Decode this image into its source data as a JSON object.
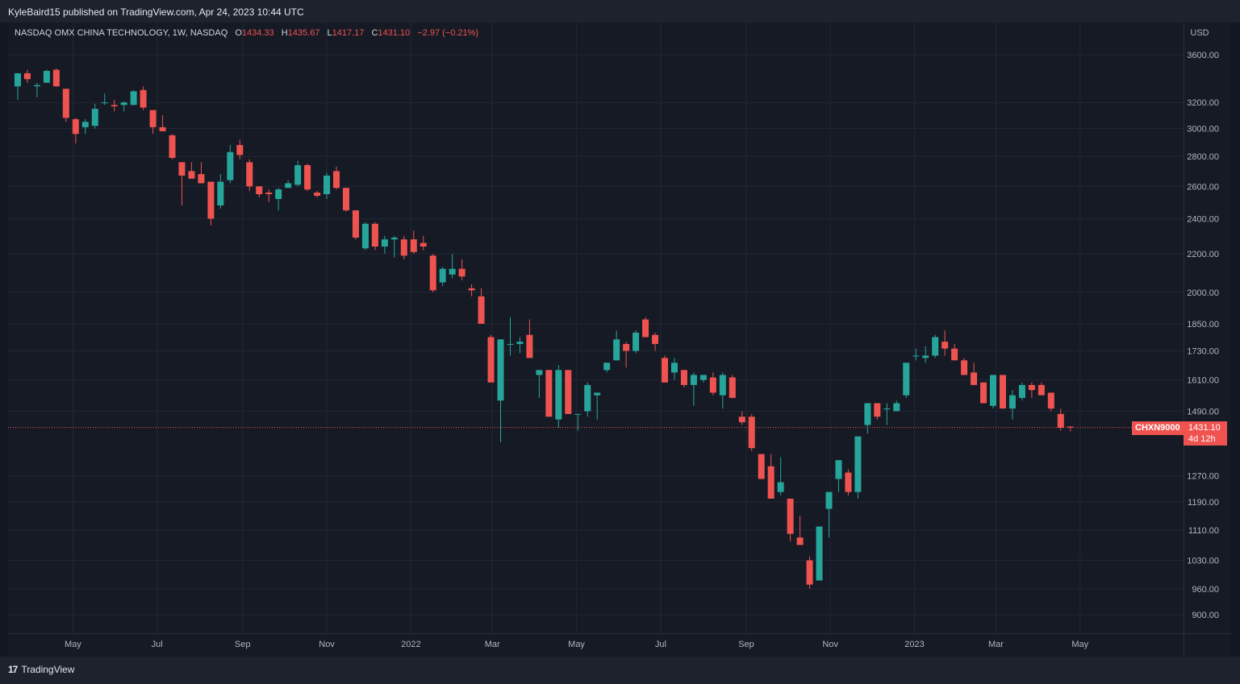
{
  "publisher_line": "KyleBaird15 published on TradingView.com, Apr 24, 2023 10:44 UTC",
  "branding": {
    "logo_glyph": "17",
    "name": "TradingView"
  },
  "legend": {
    "symbol_title": "NASDAQ OMX CHINA TECHNOLOGY, 1W, NASDAQ",
    "o_label": "O",
    "o_value": "1434.33",
    "h_label": "H",
    "h_value": "1435.67",
    "l_label": "L",
    "l_value": "1417.17",
    "c_label": "C",
    "c_value": "1431.10",
    "change": "−2.97 (−0.21%)"
  },
  "price_axis": {
    "currency": "USD",
    "current_symbol": "CHXN9000",
    "current_price": "1431.10",
    "countdown": "4d 12h"
  },
  "colors": {
    "up": "#26a69a",
    "down": "#ef5350",
    "background": "#161a25",
    "grid": "#232734",
    "text": "#b2b5be"
  },
  "chart_data": {
    "type": "candlestick",
    "title": "NASDAQ OMX CHINA TECHNOLOGY, 1W, NASDAQ",
    "y_scale": "log",
    "ylim": [
      860,
      3900
    ],
    "y_ticks": [
      900,
      960,
      1030,
      1110,
      1190,
      1270,
      1490,
      1610,
      1730,
      1850,
      2000,
      2200,
      2400,
      2600,
      2800,
      3000,
      3200,
      3600
    ],
    "x_ticks": [
      {
        "label": "May",
        "date": "2021-05-01"
      },
      {
        "label": "Jul",
        "date": "2021-07-01"
      },
      {
        "label": "Sep",
        "date": "2021-09-01"
      },
      {
        "label": "Nov",
        "date": "2021-11-01"
      },
      {
        "label": "2022",
        "date": "2022-01-01"
      },
      {
        "label": "Mar",
        "date": "2022-03-01"
      },
      {
        "label": "May",
        "date": "2022-05-01"
      },
      {
        "label": "Jul",
        "date": "2022-07-01"
      },
      {
        "label": "Sep",
        "date": "2022-09-01"
      },
      {
        "label": "Nov",
        "date": "2022-11-01"
      },
      {
        "label": "2023",
        "date": "2023-01-01"
      },
      {
        "label": "Mar",
        "date": "2023-03-01"
      },
      {
        "label": "May",
        "date": "2023-05-01"
      }
    ],
    "x_range": [
      "2021-03-15",
      "2023-07-15"
    ],
    "candles": [
      {
        "date": "2021-03-22",
        "o": 3330,
        "h": 3440,
        "l": 3220,
        "c": 3440
      },
      {
        "date": "2021-03-29",
        "o": 3440,
        "h": 3470,
        "l": 3360,
        "c": 3390
      },
      {
        "date": "2021-04-05",
        "o": 3330,
        "h": 3360,
        "l": 3240,
        "c": 3340
      },
      {
        "date": "2021-04-12",
        "o": 3360,
        "h": 3470,
        "l": 3360,
        "c": 3460
      },
      {
        "date": "2021-04-19",
        "o": 3470,
        "h": 3480,
        "l": 3330,
        "c": 3330
      },
      {
        "date": "2021-04-26",
        "o": 3310,
        "h": 3310,
        "l": 3050,
        "c": 3080
      },
      {
        "date": "2021-05-03",
        "o": 3070,
        "h": 3080,
        "l": 2890,
        "c": 2960
      },
      {
        "date": "2021-05-10",
        "o": 3010,
        "h": 3070,
        "l": 2960,
        "c": 3050
      },
      {
        "date": "2021-05-17",
        "o": 3020,
        "h": 3190,
        "l": 3000,
        "c": 3150
      },
      {
        "date": "2021-05-24",
        "o": 3200,
        "h": 3270,
        "l": 3180,
        "c": 3200
      },
      {
        "date": "2021-05-31",
        "o": 3180,
        "h": 3220,
        "l": 3130,
        "c": 3170
      },
      {
        "date": "2021-06-07",
        "o": 3180,
        "h": 3210,
        "l": 3130,
        "c": 3200
      },
      {
        "date": "2021-06-14",
        "o": 3180,
        "h": 3300,
        "l": 3180,
        "c": 3290
      },
      {
        "date": "2021-06-21",
        "o": 3300,
        "h": 3330,
        "l": 3140,
        "c": 3160
      },
      {
        "date": "2021-06-28",
        "o": 3140,
        "h": 3140,
        "l": 2960,
        "c": 3010
      },
      {
        "date": "2021-07-05",
        "o": 3010,
        "h": 3100,
        "l": 2980,
        "c": 2980
      },
      {
        "date": "2021-07-12",
        "o": 2950,
        "h": 2960,
        "l": 2780,
        "c": 2790
      },
      {
        "date": "2021-07-19",
        "o": 2760,
        "h": 2760,
        "l": 2480,
        "c": 2670
      },
      {
        "date": "2021-07-26",
        "o": 2700,
        "h": 2760,
        "l": 2650,
        "c": 2650
      },
      {
        "date": "2021-08-02",
        "o": 2680,
        "h": 2760,
        "l": 2620,
        "c": 2620
      },
      {
        "date": "2021-08-09",
        "o": 2630,
        "h": 2630,
        "l": 2360,
        "c": 2400
      },
      {
        "date": "2021-08-16",
        "o": 2480,
        "h": 2680,
        "l": 2460,
        "c": 2630
      },
      {
        "date": "2021-08-23",
        "o": 2640,
        "h": 2880,
        "l": 2620,
        "c": 2830
      },
      {
        "date": "2021-08-30",
        "o": 2880,
        "h": 2920,
        "l": 2780,
        "c": 2810
      },
      {
        "date": "2021-09-06",
        "o": 2760,
        "h": 2780,
        "l": 2570,
        "c": 2600
      },
      {
        "date": "2021-09-13",
        "o": 2600,
        "h": 2600,
        "l": 2530,
        "c": 2550
      },
      {
        "date": "2021-09-20",
        "o": 2560,
        "h": 2580,
        "l": 2500,
        "c": 2550
      },
      {
        "date": "2021-09-27",
        "o": 2520,
        "h": 2590,
        "l": 2450,
        "c": 2580
      },
      {
        "date": "2021-10-04",
        "o": 2590,
        "h": 2640,
        "l": 2590,
        "c": 2620
      },
      {
        "date": "2021-10-11",
        "o": 2610,
        "h": 2770,
        "l": 2600,
        "c": 2740
      },
      {
        "date": "2021-10-18",
        "o": 2740,
        "h": 2750,
        "l": 2570,
        "c": 2580
      },
      {
        "date": "2021-10-25",
        "o": 2560,
        "h": 2570,
        "l": 2530,
        "c": 2540
      },
      {
        "date": "2021-11-01",
        "o": 2550,
        "h": 2690,
        "l": 2520,
        "c": 2670
      },
      {
        "date": "2021-11-08",
        "o": 2700,
        "h": 2730,
        "l": 2580,
        "c": 2590
      },
      {
        "date": "2021-11-15",
        "o": 2590,
        "h": 2590,
        "l": 2440,
        "c": 2450
      },
      {
        "date": "2021-11-22",
        "o": 2450,
        "h": 2450,
        "l": 2280,
        "c": 2290
      },
      {
        "date": "2021-11-29",
        "o": 2230,
        "h": 2380,
        "l": 2220,
        "c": 2370
      },
      {
        "date": "2021-12-06",
        "o": 2370,
        "h": 2380,
        "l": 2220,
        "c": 2240
      },
      {
        "date": "2021-12-13",
        "o": 2240,
        "h": 2300,
        "l": 2200,
        "c": 2280
      },
      {
        "date": "2021-12-20",
        "o": 2280,
        "h": 2300,
        "l": 2180,
        "c": 2290
      },
      {
        "date": "2021-12-27",
        "o": 2280,
        "h": 2300,
        "l": 2170,
        "c": 2190
      },
      {
        "date": "2022-01-03",
        "o": 2280,
        "h": 2330,
        "l": 2200,
        "c": 2210
      },
      {
        "date": "2022-01-10",
        "o": 2260,
        "h": 2300,
        "l": 2220,
        "c": 2240
      },
      {
        "date": "2022-01-17",
        "o": 2190,
        "h": 2200,
        "l": 2000,
        "c": 2010
      },
      {
        "date": "2022-01-24",
        "o": 2050,
        "h": 2130,
        "l": 2030,
        "c": 2120
      },
      {
        "date": "2022-01-31",
        "o": 2090,
        "h": 2200,
        "l": 2070,
        "c": 2120
      },
      {
        "date": "2022-02-07",
        "o": 2120,
        "h": 2170,
        "l": 2060,
        "c": 2080
      },
      {
        "date": "2022-02-14",
        "o": 2020,
        "h": 2040,
        "l": 1980,
        "c": 2010
      },
      {
        "date": "2022-02-21",
        "o": 1980,
        "h": 2020,
        "l": 1850,
        "c": 1850
      },
      {
        "date": "2022-02-28",
        "o": 1790,
        "h": 1800,
        "l": 1600,
        "c": 1600
      },
      {
        "date": "2022-03-07",
        "o": 1530,
        "h": 1780,
        "l": 1380,
        "c": 1780
      },
      {
        "date": "2022-03-14",
        "o": 1760,
        "h": 1880,
        "l": 1710,
        "c": 1760
      },
      {
        "date": "2022-03-21",
        "o": 1760,
        "h": 1790,
        "l": 1720,
        "c": 1770
      },
      {
        "date": "2022-03-28",
        "o": 1800,
        "h": 1870,
        "l": 1700,
        "c": 1700
      },
      {
        "date": "2022-04-04",
        "o": 1630,
        "h": 1650,
        "l": 1540,
        "c": 1650
      },
      {
        "date": "2022-04-11",
        "o": 1650,
        "h": 1650,
        "l": 1470,
        "c": 1470
      },
      {
        "date": "2022-04-18",
        "o": 1460,
        "h": 1670,
        "l": 1430,
        "c": 1650
      },
      {
        "date": "2022-04-25",
        "o": 1650,
        "h": 1650,
        "l": 1480,
        "c": 1480
      },
      {
        "date": "2022-05-02",
        "o": 1480,
        "h": 1480,
        "l": 1420,
        "c": 1480
      },
      {
        "date": "2022-05-09",
        "o": 1490,
        "h": 1600,
        "l": 1470,
        "c": 1590
      },
      {
        "date": "2022-05-16",
        "o": 1550,
        "h": 1560,
        "l": 1460,
        "c": 1560
      },
      {
        "date": "2022-05-23",
        "o": 1650,
        "h": 1680,
        "l": 1640,
        "c": 1680
      },
      {
        "date": "2022-05-30",
        "o": 1690,
        "h": 1820,
        "l": 1690,
        "c": 1780
      },
      {
        "date": "2022-06-06",
        "o": 1760,
        "h": 1770,
        "l": 1660,
        "c": 1730
      },
      {
        "date": "2022-06-13",
        "o": 1730,
        "h": 1820,
        "l": 1720,
        "c": 1810
      },
      {
        "date": "2022-06-20",
        "o": 1870,
        "h": 1880,
        "l": 1790,
        "c": 1790
      },
      {
        "date": "2022-06-27",
        "o": 1800,
        "h": 1810,
        "l": 1730,
        "c": 1760
      },
      {
        "date": "2022-07-04",
        "o": 1700,
        "h": 1710,
        "l": 1600,
        "c": 1600
      },
      {
        "date": "2022-07-11",
        "o": 1640,
        "h": 1700,
        "l": 1610,
        "c": 1680
      },
      {
        "date": "2022-07-18",
        "o": 1650,
        "h": 1650,
        "l": 1580,
        "c": 1590
      },
      {
        "date": "2022-07-25",
        "o": 1590,
        "h": 1640,
        "l": 1510,
        "c": 1630
      },
      {
        "date": "2022-08-01",
        "o": 1610,
        "h": 1630,
        "l": 1600,
        "c": 1630
      },
      {
        "date": "2022-08-08",
        "o": 1620,
        "h": 1640,
        "l": 1550,
        "c": 1560
      },
      {
        "date": "2022-08-15",
        "o": 1550,
        "h": 1640,
        "l": 1500,
        "c": 1630
      },
      {
        "date": "2022-08-22",
        "o": 1620,
        "h": 1630,
        "l": 1540,
        "c": 1540
      },
      {
        "date": "2022-08-29",
        "o": 1470,
        "h": 1490,
        "l": 1440,
        "c": 1450
      },
      {
        "date": "2022-09-05",
        "o": 1470,
        "h": 1480,
        "l": 1350,
        "c": 1360
      },
      {
        "date": "2022-09-12",
        "o": 1340,
        "h": 1340,
        "l": 1260,
        "c": 1260
      },
      {
        "date": "2022-09-19",
        "o": 1300,
        "h": 1340,
        "l": 1200,
        "c": 1200
      },
      {
        "date": "2022-09-26",
        "o": 1220,
        "h": 1330,
        "l": 1210,
        "c": 1250
      },
      {
        "date": "2022-10-03",
        "o": 1200,
        "h": 1200,
        "l": 1080,
        "c": 1100
      },
      {
        "date": "2022-10-10",
        "o": 1090,
        "h": 1150,
        "l": 1070,
        "c": 1070
      },
      {
        "date": "2022-10-17",
        "o": 1030,
        "h": 1040,
        "l": 960,
        "c": 970
      },
      {
        "date": "2022-10-24",
        "o": 980,
        "h": 1120,
        "l": 980,
        "c": 1120
      },
      {
        "date": "2022-10-31",
        "o": 1170,
        "h": 1220,
        "l": 1090,
        "c": 1220
      },
      {
        "date": "2022-11-07",
        "o": 1260,
        "h": 1320,
        "l": 1220,
        "c": 1320
      },
      {
        "date": "2022-11-14",
        "o": 1280,
        "h": 1290,
        "l": 1210,
        "c": 1220
      },
      {
        "date": "2022-11-21",
        "o": 1220,
        "h": 1400,
        "l": 1200,
        "c": 1400
      },
      {
        "date": "2022-11-28",
        "o": 1440,
        "h": 1520,
        "l": 1410,
        "c": 1520
      },
      {
        "date": "2022-12-05",
        "o": 1520,
        "h": 1520,
        "l": 1460,
        "c": 1470
      },
      {
        "date": "2022-12-12",
        "o": 1500,
        "h": 1520,
        "l": 1440,
        "c": 1500
      },
      {
        "date": "2022-12-19",
        "o": 1490,
        "h": 1530,
        "l": 1490,
        "c": 1520
      },
      {
        "date": "2022-12-26",
        "o": 1550,
        "h": 1680,
        "l": 1540,
        "c": 1680
      },
      {
        "date": "2023-01-02",
        "o": 1710,
        "h": 1740,
        "l": 1690,
        "c": 1710
      },
      {
        "date": "2023-01-09",
        "o": 1700,
        "h": 1750,
        "l": 1680,
        "c": 1710
      },
      {
        "date": "2023-01-16",
        "o": 1710,
        "h": 1800,
        "l": 1700,
        "c": 1790
      },
      {
        "date": "2023-01-23",
        "o": 1770,
        "h": 1820,
        "l": 1710,
        "c": 1740
      },
      {
        "date": "2023-01-30",
        "o": 1740,
        "h": 1760,
        "l": 1690,
        "c": 1690
      },
      {
        "date": "2023-02-06",
        "o": 1690,
        "h": 1700,
        "l": 1630,
        "c": 1630
      },
      {
        "date": "2023-02-13",
        "o": 1640,
        "h": 1680,
        "l": 1590,
        "c": 1590
      },
      {
        "date": "2023-02-20",
        "o": 1600,
        "h": 1600,
        "l": 1520,
        "c": 1520
      },
      {
        "date": "2023-02-27",
        "o": 1510,
        "h": 1630,
        "l": 1500,
        "c": 1630
      },
      {
        "date": "2023-03-06",
        "o": 1630,
        "h": 1630,
        "l": 1500,
        "c": 1500
      },
      {
        "date": "2023-03-13",
        "o": 1500,
        "h": 1570,
        "l": 1460,
        "c": 1550
      },
      {
        "date": "2023-03-20",
        "o": 1540,
        "h": 1600,
        "l": 1530,
        "c": 1590
      },
      {
        "date": "2023-03-27",
        "o": 1590,
        "h": 1600,
        "l": 1540,
        "c": 1570
      },
      {
        "date": "2023-04-03",
        "o": 1590,
        "h": 1600,
        "l": 1560,
        "c": 1550
      },
      {
        "date": "2023-04-10",
        "o": 1560,
        "h": 1560,
        "l": 1490,
        "c": 1500
      },
      {
        "date": "2023-04-17",
        "o": 1480,
        "h": 1500,
        "l": 1420,
        "c": 1430
      },
      {
        "date": "2023-04-24",
        "o": 1434.33,
        "h": 1435.67,
        "l": 1417.17,
        "c": 1431.1
      }
    ]
  }
}
